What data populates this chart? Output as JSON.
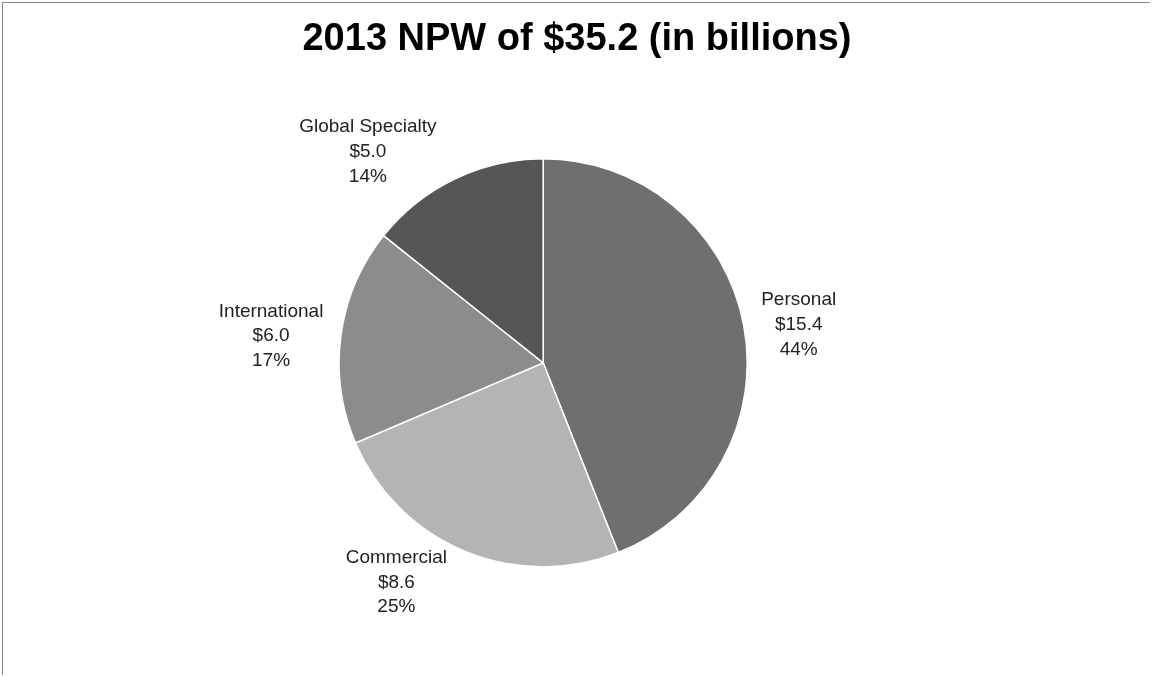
{
  "chart_data": {
    "type": "pie",
    "title": "2013 NPW of $35.2 (in billions)",
    "categories": [
      "Personal",
      "Commercial",
      "International",
      "Global Specialty"
    ],
    "values": [
      15.4,
      8.6,
      6.0,
      5.0
    ],
    "value_labels": [
      "$15.4\n44%",
      "$8.6\n25%",
      "$6.0\n17%",
      "$5.0\n14%"
    ],
    "colors": [
      "#6f6f6f",
      "#b4b4b4",
      "#8c8c8c",
      "#565656"
    ],
    "legend": false
  }
}
